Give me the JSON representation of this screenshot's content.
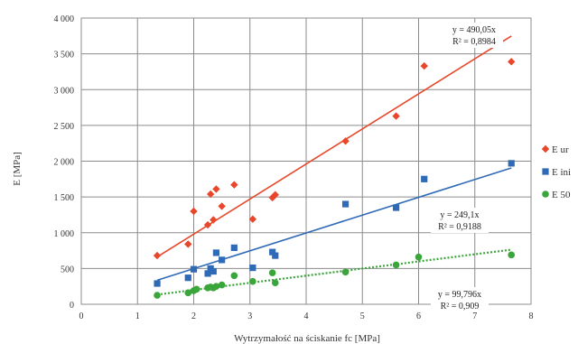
{
  "chart_data": {
    "type": "scatter",
    "xlabel": "Wytrzymałość na ściskanie fc [MPa]",
    "ylabel": "E [MPa]",
    "xlim": [
      0,
      8
    ],
    "ylim": [
      0,
      4000
    ],
    "x_ticks": [
      "0",
      "1",
      "2",
      "3",
      "4",
      "5",
      "6",
      "7",
      "8"
    ],
    "y_ticks": [
      "0",
      "500",
      "1 000",
      "1 500",
      "2 000",
      "2 500",
      "3 000",
      "3 500",
      "4 000"
    ],
    "grid": true,
    "legend_position": "right",
    "series": [
      {
        "name": "E ur",
        "color": "#e8472b",
        "marker": "diamond",
        "trendline": {
          "slope": 490.05,
          "equation": "y = 490,05x",
          "r2": "R² = 0,8984"
        },
        "points": [
          [
            1.35,
            680
          ],
          [
            1.9,
            840
          ],
          [
            2.0,
            1300
          ],
          [
            2.25,
            1110
          ],
          [
            2.3,
            1540
          ],
          [
            2.35,
            1180
          ],
          [
            2.4,
            1610
          ],
          [
            2.5,
            1370
          ],
          [
            2.72,
            1670
          ],
          [
            3.05,
            1190
          ],
          [
            3.4,
            1490
          ],
          [
            3.45,
            1530
          ],
          [
            4.7,
            2280
          ],
          [
            5.6,
            2630
          ],
          [
            6.1,
            3330
          ],
          [
            7.65,
            3390
          ]
        ]
      },
      {
        "name": "E ini",
        "color": "#2f6ab7",
        "marker": "square",
        "trendline": {
          "slope": 249.1,
          "equation": "y = 249,1x",
          "r2": "R² = 0,9188"
        },
        "points": [
          [
            1.35,
            290
          ],
          [
            1.9,
            370
          ],
          [
            2.0,
            490
          ],
          [
            2.25,
            430
          ],
          [
            2.3,
            500
          ],
          [
            2.35,
            460
          ],
          [
            2.4,
            720
          ],
          [
            2.5,
            620
          ],
          [
            2.72,
            790
          ],
          [
            3.05,
            510
          ],
          [
            3.4,
            730
          ],
          [
            3.45,
            680
          ],
          [
            4.7,
            1400
          ],
          [
            5.6,
            1350
          ],
          [
            6.1,
            1750
          ],
          [
            7.65,
            1970
          ]
        ]
      },
      {
        "name": "E 50",
        "color": "#3aa53a",
        "marker": "circle",
        "trendline": {
          "slope": 99.796,
          "equation": "y = 99,796x",
          "r2": "R² = 0,909"
        },
        "points": [
          [
            1.35,
            125
          ],
          [
            1.9,
            160
          ],
          [
            2.0,
            190
          ],
          [
            2.05,
            210
          ],
          [
            2.25,
            230
          ],
          [
            2.3,
            240
          ],
          [
            2.35,
            230
          ],
          [
            2.4,
            250
          ],
          [
            2.5,
            270
          ],
          [
            2.72,
            400
          ],
          [
            3.05,
            320
          ],
          [
            3.4,
            440
          ],
          [
            3.45,
            300
          ],
          [
            4.7,
            450
          ],
          [
            5.6,
            550
          ],
          [
            6.0,
            660
          ],
          [
            7.65,
            690
          ]
        ]
      }
    ]
  }
}
